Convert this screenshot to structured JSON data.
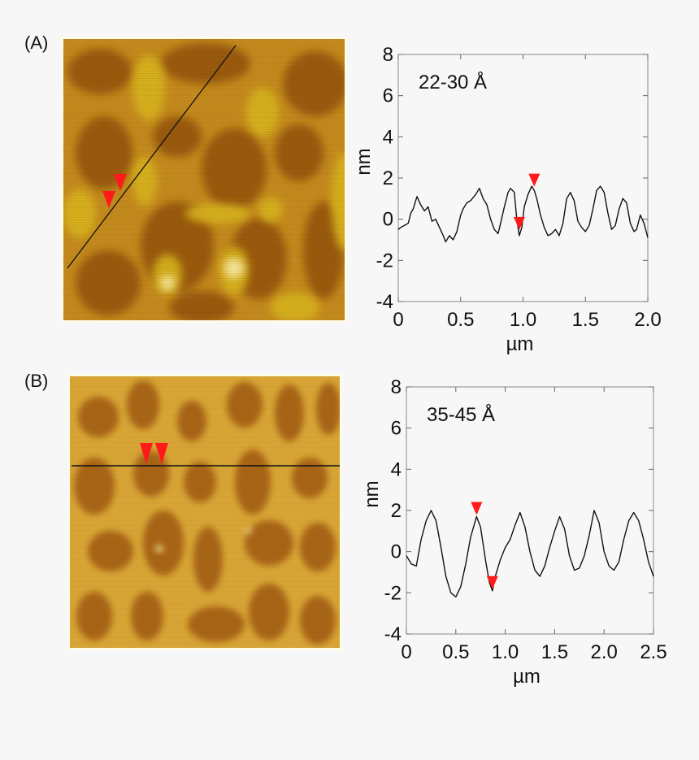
{
  "figure": {
    "panels": [
      {
        "label": "(A)",
        "image_name": "afm-topography-image-a",
        "profile_line": "diagonal",
        "chart_data": {
          "type": "line",
          "annotation": "22-30 Å",
          "xlabel": "µm",
          "ylabel": "nm",
          "xlim": [
            0,
            2.0
          ],
          "ylim": [
            -4,
            8
          ],
          "xticks": [
            "0",
            "0.5",
            "1.0",
            "1.5",
            "2.0"
          ],
          "yticks": [
            "-4",
            "-2",
            "0",
            "2",
            "4",
            "6",
            "8"
          ],
          "marker_color": "#ff1a1a",
          "markers": [
            {
              "x": 0.97,
              "y": -0.6,
              "type": "down-triangle"
            },
            {
              "x": 1.09,
              "y": 1.5,
              "type": "down-triangle"
            }
          ],
          "series": [
            {
              "x": [
                0.0,
                0.02,
                0.05,
                0.08,
                0.1,
                0.12,
                0.15,
                0.18,
                0.21,
                0.24,
                0.27,
                0.3,
                0.33,
                0.36,
                0.38,
                0.41,
                0.44,
                0.47,
                0.5,
                0.52,
                0.55,
                0.58,
                0.62,
                0.65,
                0.68,
                0.71,
                0.74,
                0.77,
                0.8,
                0.82,
                0.85,
                0.88,
                0.9,
                0.93,
                0.95,
                0.97,
                0.99,
                1.01,
                1.04,
                1.07,
                1.09,
                1.11,
                1.14,
                1.17,
                1.2,
                1.23,
                1.26,
                1.29,
                1.32,
                1.35,
                1.38,
                1.41,
                1.44,
                1.47,
                1.5,
                1.53,
                1.56,
                1.59,
                1.62,
                1.65,
                1.68,
                1.71,
                1.74,
                1.77,
                1.8,
                1.83,
                1.86,
                1.89,
                1.91,
                1.94,
                1.97,
                2.0
              ],
              "y": [
                -0.5,
                -0.4,
                -0.3,
                -0.2,
                0.3,
                0.5,
                1.1,
                0.7,
                0.4,
                0.6,
                -0.1,
                0.0,
                -0.4,
                -0.8,
                -1.1,
                -0.8,
                -1.0,
                -0.6,
                0.2,
                0.5,
                0.8,
                0.9,
                1.2,
                1.5,
                1.0,
                0.7,
                0.0,
                -0.5,
                -0.7,
                -0.2,
                0.6,
                1.3,
                1.5,
                1.3,
                0.0,
                -0.8,
                -0.4,
                0.6,
                1.2,
                1.6,
                1.4,
                1.0,
                0.2,
                -0.4,
                -0.8,
                -0.7,
                -0.5,
                -0.8,
                -0.2,
                1.0,
                1.3,
                0.9,
                -0.1,
                -0.4,
                -0.6,
                -0.3,
                0.5,
                1.4,
                1.6,
                1.3,
                0.3,
                -0.5,
                -0.3,
                0.5,
                1.0,
                0.8,
                -0.2,
                -0.6,
                -0.5,
                0.2,
                -0.2,
                -0.9
              ]
            }
          ]
        }
      },
      {
        "label": "(B)",
        "image_name": "afm-topography-image-b",
        "profile_line": "horizontal",
        "chart_data": {
          "type": "line",
          "annotation": "35-45 Å",
          "xlabel": "µm",
          "ylabel": "nm",
          "xlim": [
            0,
            2.5
          ],
          "ylim": [
            -4,
            8
          ],
          "xticks": [
            "0",
            "0.5",
            "1.0",
            "1.5",
            "2.0",
            "2.5"
          ],
          "yticks": [
            "-4",
            "-2",
            "0",
            "2",
            "4",
            "6",
            "8"
          ],
          "marker_color": "#ff1a1a",
          "markers": [
            {
              "x": 0.71,
              "y": 1.7,
              "type": "down-triangle"
            },
            {
              "x": 0.87,
              "y": -1.9,
              "type": "down-triangle"
            }
          ],
          "series": [
            {
              "x": [
                0.0,
                0.05,
                0.1,
                0.15,
                0.2,
                0.25,
                0.3,
                0.35,
                0.4,
                0.45,
                0.5,
                0.55,
                0.6,
                0.65,
                0.71,
                0.75,
                0.8,
                0.84,
                0.87,
                0.9,
                0.95,
                1.0,
                1.05,
                1.1,
                1.15,
                1.2,
                1.25,
                1.3,
                1.35,
                1.4,
                1.45,
                1.5,
                1.55,
                1.6,
                1.65,
                1.7,
                1.75,
                1.8,
                1.85,
                1.9,
                1.95,
                2.0,
                2.05,
                2.1,
                2.15,
                2.2,
                2.25,
                2.3,
                2.35,
                2.4,
                2.45,
                2.5
              ],
              "y": [
                -0.2,
                -0.6,
                -0.7,
                0.6,
                1.5,
                2.0,
                1.5,
                0.2,
                -1.2,
                -2.0,
                -2.2,
                -1.7,
                -0.6,
                0.7,
                1.7,
                1.2,
                -0.4,
                -1.5,
                -1.9,
                -1.2,
                -0.4,
                0.2,
                0.6,
                1.3,
                1.9,
                1.2,
                0.0,
                -0.9,
                -1.2,
                -0.7,
                0.2,
                1.0,
                1.7,
                1.1,
                -0.2,
                -0.9,
                -0.8,
                -0.2,
                0.8,
                2.0,
                1.4,
                0.0,
                -0.7,
                -0.9,
                -0.5,
                0.6,
                1.5,
                1.9,
                1.5,
                0.6,
                -0.5,
                -1.2
              ]
            }
          ]
        }
      }
    ]
  }
}
